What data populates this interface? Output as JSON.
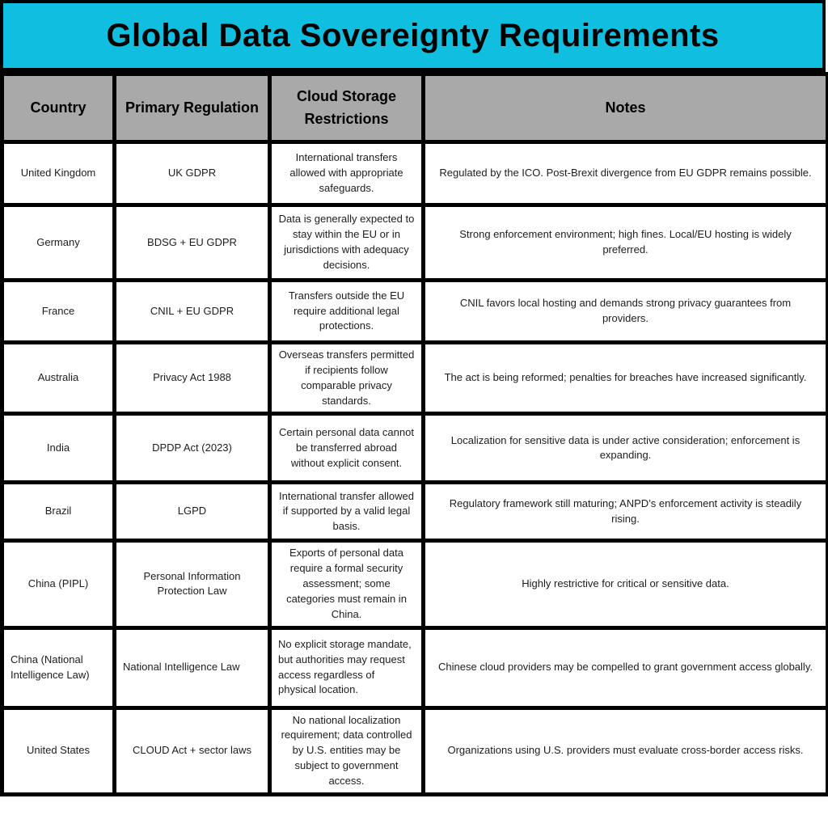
{
  "title": "Global Data Sovereignty Requirements",
  "colors": {
    "banner": "#10BFDF",
    "header_bg": "#A9A9A9",
    "border": "#000000"
  },
  "table": {
    "columns": [
      "Country",
      "Primary Regulation",
      "Cloud Storage Restrictions",
      "Notes"
    ],
    "rows": [
      {
        "country": "United Kingdom",
        "regulation": "UK GDPR",
        "restrictions": "International transfers allowed with appropriate safeguards.",
        "notes": "Regulated by the ICO. Post-Brexit divergence from EU GDPR remains possible."
      },
      {
        "country": "Germany",
        "regulation": "BDSG + EU GDPR",
        "restrictions": "Data is generally expected to stay within the EU or in jurisdictions with adequacy decisions.",
        "notes": "Strong enforcement environment; high fines. Local/EU hosting is widely preferred."
      },
      {
        "country": "France",
        "regulation": "CNIL + EU GDPR",
        "restrictions": "Transfers outside the EU require additional legal protections.",
        "notes": "CNIL favors local hosting and demands strong privacy guarantees from providers."
      },
      {
        "country": "Australia",
        "regulation": "Privacy Act 1988",
        "restrictions": "Overseas transfers permitted if recipients follow comparable privacy standards.",
        "notes": "The act is being reformed; penalties for breaches have increased significantly."
      },
      {
        "country": "India",
        "regulation": "DPDP Act (2023)",
        "restrictions": "Certain personal data cannot be transferred abroad without explicit consent.",
        "notes": "Localization for sensitive data is under active consideration; enforcement is expanding."
      },
      {
        "country": "Brazil",
        "regulation": "LGPD",
        "restrictions": "International transfer allowed if supported by a valid legal basis.",
        "notes": "Regulatory framework still maturing; ANPD’s enforcement activity is steadily rising."
      },
      {
        "country": "China (PIPL)",
        "regulation": "Personal Information Protection Law",
        "restrictions": "Exports of personal data require a formal security assessment; some categories must remain in China.",
        "notes": "Highly restrictive for critical or sensitive data."
      },
      {
        "country": "China (National Intelligence Law)",
        "regulation": "National Intelligence Law",
        "restrictions": "No explicit storage mandate, but authorities may request access regardless of physical location.",
        "notes": "Chinese cloud providers may be compelled to grant government access globally."
      },
      {
        "country": "United States",
        "regulation": "CLOUD Act + sector laws",
        "restrictions": "No national localization requirement; data controlled by U.S. entities may be subject to government access.",
        "notes": "Organizations using U.S. providers must evaluate cross-border access risks."
      }
    ]
  }
}
